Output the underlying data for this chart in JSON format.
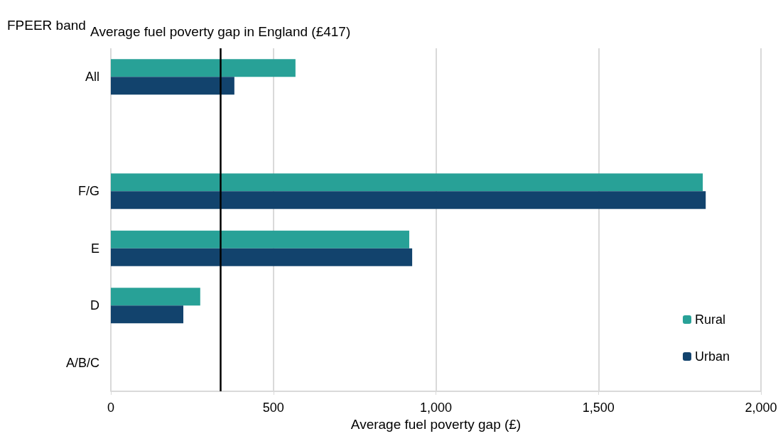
{
  "chart_data": {
    "type": "bar",
    "orientation": "horizontal",
    "ylabel": "FPEER band",
    "xlabel": "Average fuel poverty gap (£)",
    "categories": [
      "All",
      null,
      "F/G",
      "E",
      "D",
      "A/B/C"
    ],
    "series": [
      {
        "name": "Rural",
        "color": "#28a197",
        "values": [
          568,
          null,
          1821,
          918,
          275,
          null
        ]
      },
      {
        "name": "Urban",
        "color": "#12436d",
        "values": [
          380,
          null,
          1830,
          927,
          223,
          null
        ]
      }
    ],
    "xlim": [
      0,
      2000
    ],
    "xticks": [
      0,
      {
        "value": 500,
        "label": "500"
      },
      {
        "value": 1000,
        "label": "1,000"
      },
      {
        "value": 1500,
        "label": "1,500"
      },
      {
        "value": 2000,
        "label": "2,000"
      }
    ],
    "grid": "x",
    "legend": "bottom right",
    "ref_lines": [
      {
        "axis": "x",
        "value": 337,
        "label": "Average fuel poverty gap in England (£417)",
        "color": "#000000"
      }
    ]
  }
}
